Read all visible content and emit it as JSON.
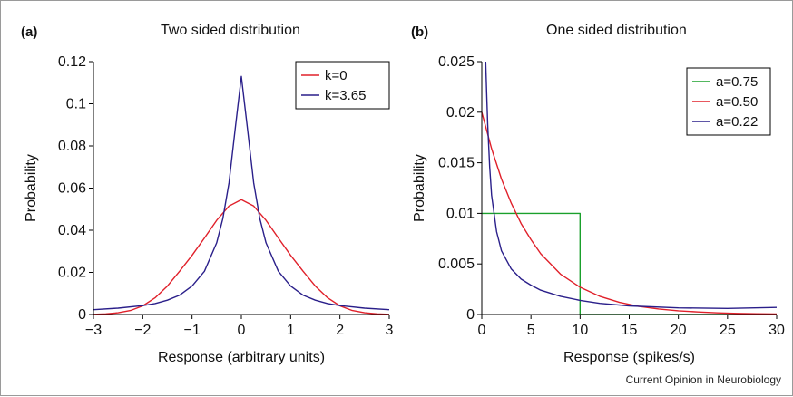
{
  "source_note": "Current Opinion in Neurobiology",
  "chart_data": [
    {
      "type": "line",
      "panel_label": "(a)",
      "title": "Two sided distribution",
      "xlabel": "Response (arbitrary units)",
      "ylabel": "Probability",
      "xlim": [
        -3,
        3
      ],
      "ylim": [
        0,
        0.12
      ],
      "xticks": [
        -3,
        -2,
        -1,
        0,
        1,
        2,
        3
      ],
      "xtick_labels": [
        "−3",
        "−2",
        "−1",
        "0",
        "1",
        "2",
        "3"
      ],
      "yticks": [
        0,
        0.02,
        0.04,
        0.06,
        0.08,
        0.1,
        0.12
      ],
      "ytick_labels": [
        "0",
        "0.02",
        "0.04",
        "0.06",
        "0.08",
        "0.1",
        "0.12"
      ],
      "grid": false,
      "legend_position": "top-right",
      "series": [
        {
          "name": "k=0",
          "color": "#e0202a",
          "x": [
            -3,
            -2.75,
            -2.5,
            -2.25,
            -2,
            -1.75,
            -1.5,
            -1.25,
            -1,
            -0.75,
            -0.5,
            -0.25,
            0,
            0.25,
            0.5,
            0.75,
            1,
            1.25,
            1.5,
            1.75,
            2,
            2.25,
            2.5,
            2.75,
            3
          ],
          "y": [
            0.0001,
            0.0003,
            0.0008,
            0.0019,
            0.0041,
            0.0079,
            0.0135,
            0.0206,
            0.0281,
            0.0363,
            0.0447,
            0.0515,
            0.0545,
            0.0515,
            0.0447,
            0.0363,
            0.0281,
            0.0206,
            0.0135,
            0.0079,
            0.0041,
            0.0019,
            0.0008,
            0.0003,
            0.0001
          ]
        },
        {
          "name": "k=3.65",
          "color": "#2a1f8a",
          "x": [
            -3,
            -2.5,
            -2,
            -1.75,
            -1.5,
            -1.25,
            -1,
            -0.75,
            -0.5,
            -0.375,
            -0.25,
            -0.125,
            0,
            0.125,
            0.25,
            0.375,
            0.5,
            0.75,
            1,
            1.25,
            1.5,
            1.75,
            2,
            2.5,
            3
          ],
          "y": [
            0.0023,
            0.003,
            0.0042,
            0.0052,
            0.0068,
            0.0092,
            0.0135,
            0.0205,
            0.034,
            0.0455,
            0.0625,
            0.088,
            0.113,
            0.088,
            0.0625,
            0.0455,
            0.034,
            0.0205,
            0.0135,
            0.0092,
            0.0068,
            0.0052,
            0.0042,
            0.003,
            0.0023
          ]
        }
      ]
    },
    {
      "type": "line",
      "panel_label": "(b)",
      "title": "One sided distribution",
      "xlabel": "Response (spikes/s)",
      "ylabel": "Probability",
      "xlim": [
        0,
        30
      ],
      "ylim": [
        0,
        0.025
      ],
      "xticks": [
        0,
        5,
        10,
        15,
        20,
        25,
        30
      ],
      "xtick_labels": [
        "0",
        "5",
        "10",
        "15",
        "20",
        "25",
        "30"
      ],
      "yticks": [
        0,
        0.005,
        0.01,
        0.015,
        0.02,
        0.025
      ],
      "ytick_labels": [
        "0",
        "0.005",
        "0.01",
        "0.015",
        "0.02",
        "0.025"
      ],
      "grid": false,
      "legend_position": "top-right",
      "series": [
        {
          "name": "a=0.75",
          "color": "#1aa02c",
          "x": [
            0,
            10,
            10,
            30
          ],
          "y": [
            0.01,
            0.01,
            0,
            0
          ]
        },
        {
          "name": "a=0.50",
          "color": "#e0202a",
          "x": [
            0,
            1,
            2,
            3,
            4,
            5,
            6,
            8,
            10,
            12,
            14,
            16,
            18,
            20,
            22,
            24,
            26,
            28,
            30
          ],
          "y": [
            0.02,
            0.0164,
            0.0134,
            0.011,
            0.009,
            0.0074,
            0.006,
            0.004,
            0.0027,
            0.0018,
            0.0012,
            0.0008,
            0.00055,
            0.00037,
            0.00025,
            0.00016,
            0.00011,
            7e-05,
            5e-05
          ]
        },
        {
          "name": "a=0.22",
          "color": "#2a1f8a",
          "x": [
            0.4,
            0.5,
            0.6,
            0.8,
            1,
            1.5,
            2,
            3,
            4,
            5,
            6,
            8,
            10,
            12,
            15,
            20,
            25,
            30
          ],
          "y": [
            0.025,
            0.0218,
            0.0188,
            0.0146,
            0.0118,
            0.0082,
            0.0063,
            0.0045,
            0.0035,
            0.0029,
            0.0024,
            0.0018,
            0.0014,
            0.0011,
            0.00085,
            0.00065,
            0.0006,
            0.0007
          ]
        }
      ]
    }
  ]
}
